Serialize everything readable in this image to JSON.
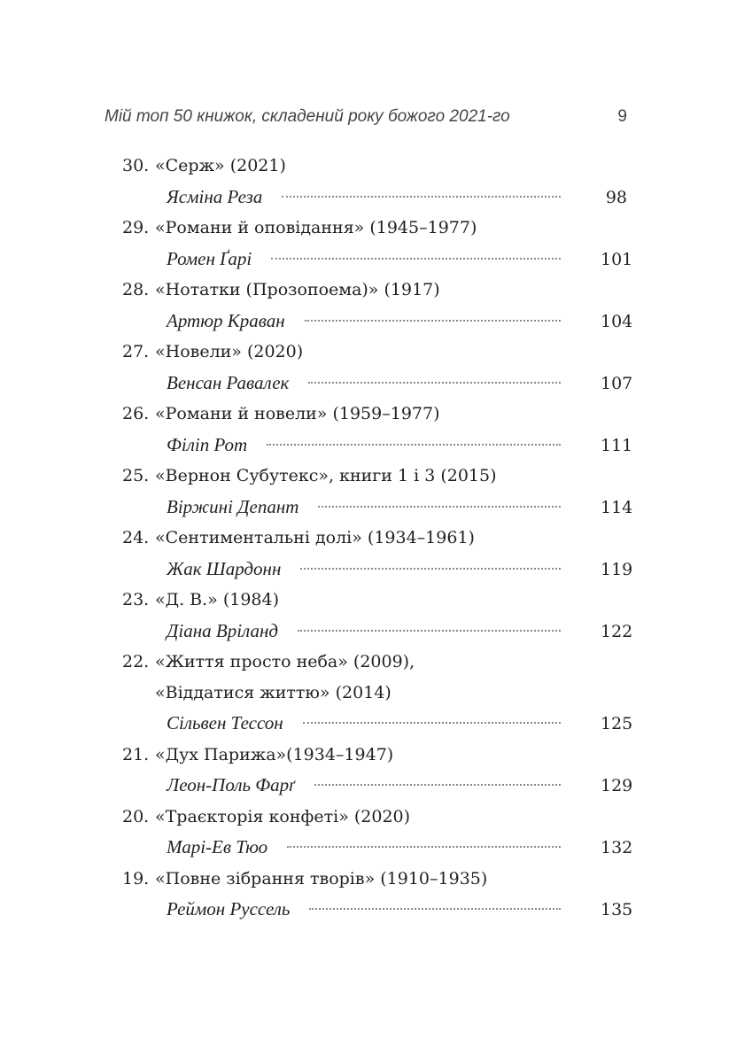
{
  "header": {
    "running_title": "Мій топ 50 книжок, складений року божого 2021-го",
    "page_number": "9"
  },
  "entries": [
    {
      "num": "30.",
      "title": [
        "«Серж» (2021)"
      ],
      "author": "Ясміна Реза",
      "page": "98"
    },
    {
      "num": "29.",
      "title": [
        "«Романи й оповідання» (1945–1977)"
      ],
      "author": "Ромен Ґарі",
      "page": "101"
    },
    {
      "num": "28.",
      "title": [
        "«Нотатки (Прозопоема)» (1917)"
      ],
      "author": "Артюр Краван",
      "page": "104"
    },
    {
      "num": "27.",
      "title": [
        "«Новели» (2020)"
      ],
      "author": "Венсан Равалек",
      "page": "107"
    },
    {
      "num": "26.",
      "title": [
        "«Романи й новели» (1959–1977)"
      ],
      "author": "Філіп Рот",
      "page": "111"
    },
    {
      "num": "25.",
      "title": [
        "«Вернон Субутекс», книги 1 і 3 (2015)"
      ],
      "author": "Віржині Депант",
      "page": "114"
    },
    {
      "num": "24.",
      "title": [
        "«Сентиментальні долі» (1934–1961)"
      ],
      "author": "Жак Шардонн",
      "page": "119"
    },
    {
      "num": "23.",
      "title": [
        "«Д. В.» (1984)"
      ],
      "author": "Діана Вріланд",
      "page": "122"
    },
    {
      "num": "22.",
      "title": [
        "«Життя просто неба» (2009),",
        "«Віддатися життю» (2014)"
      ],
      "author": "Сільвен Тессон",
      "page": "125"
    },
    {
      "num": "21.",
      "title": [
        "«Дух Парижа»(1934–1947)"
      ],
      "author": "Леон-Поль Фарґ",
      "page": "129"
    },
    {
      "num": "20.",
      "title": [
        "«Траєкторія конфеті» (2020)"
      ],
      "author": "Марі-Ев Тюо",
      "page": "132"
    },
    {
      "num": "19.",
      "title": [
        "«Повне зібрання творів» (1910–1935)"
      ],
      "author": "Реймон Руссель",
      "page": "135"
    }
  ]
}
